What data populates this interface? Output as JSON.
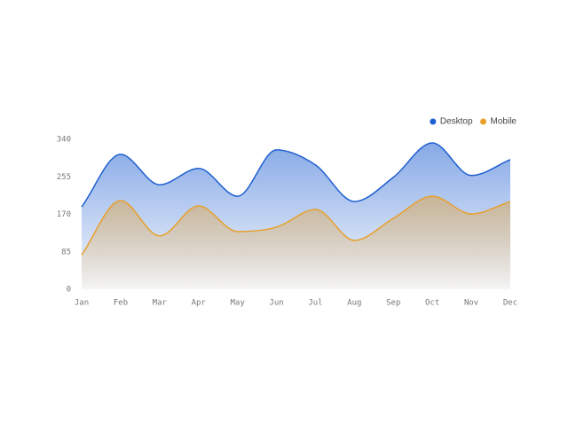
{
  "chart_data": {
    "type": "area",
    "categories": [
      "Jan",
      "Feb",
      "Mar",
      "Apr",
      "May",
      "Jun",
      "Jul",
      "Aug",
      "Sep",
      "Oct",
      "Nov",
      "Dec"
    ],
    "series": [
      {
        "name": "Desktop",
        "color": "#1f5fd1",
        "values": [
          187,
          306,
          237,
          274,
          211,
          316,
          282,
          199,
          254,
          332,
          258,
          294
        ]
      },
      {
        "name": "Mobile",
        "color": "#e8a02a",
        "values": [
          78,
          201,
          121,
          189,
          131,
          141,
          181,
          111,
          161,
          211,
          171,
          199
        ]
      }
    ],
    "ylim": [
      0,
      340
    ],
    "yticks": [
      0,
      85,
      170,
      255,
      340
    ],
    "legend": "top-right",
    "grid": false
  }
}
